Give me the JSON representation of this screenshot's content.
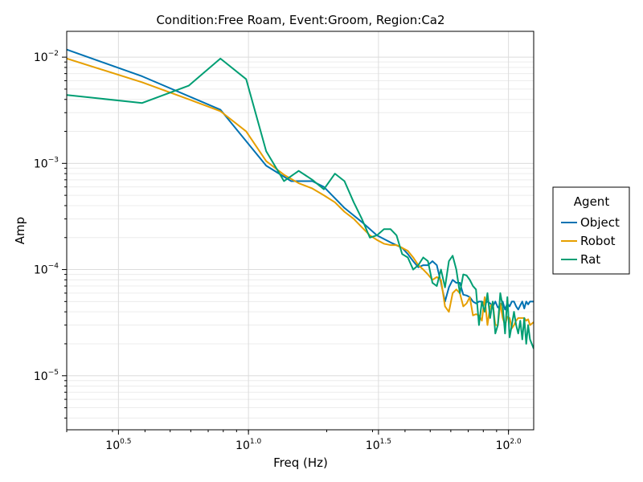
{
  "chart_data": {
    "type": "line",
    "title": "Condition:Free Roam, Event:Groom, Region:Ca2",
    "xlabel": "Freq (Hz)",
    "ylabel": "Amp",
    "x_scale": "log10",
    "y_scale": "log10",
    "xlim": [
      2.0,
      125.0
    ],
    "ylim": [
      3.1e-06,
      0.0175
    ],
    "grid": true,
    "x_ticks": [
      {
        "value": 3.1623,
        "base": "10",
        "exp": "0.5"
      },
      {
        "value": 10.0,
        "base": "10",
        "exp": "1.0"
      },
      {
        "value": 31.623,
        "base": "10",
        "exp": "1.5"
      },
      {
        "value": 100.0,
        "base": "10",
        "exp": "2.0"
      }
    ],
    "y_ticks": [
      {
        "value": 1e-05,
        "base": "10",
        "exp": "−5"
      },
      {
        "value": 0.0001,
        "base": "10",
        "exp": "−4"
      },
      {
        "value": 0.001,
        "base": "10",
        "exp": "−3"
      },
      {
        "value": 0.01,
        "base": "10",
        "exp": "−2"
      }
    ],
    "legend": {
      "title": "Agent",
      "position": "right"
    },
    "series": [
      {
        "name": "Object",
        "color": "#0072b2",
        "points": [
          [
            2.0,
            0.0118
          ],
          [
            3.9,
            0.0066
          ],
          [
            7.8,
            0.0032
          ],
          [
            11.7,
            0.00095
          ],
          [
            14.6,
            0.00068
          ],
          [
            17.6,
            0.00068
          ],
          [
            19.5,
            0.0006
          ],
          [
            23.4,
            0.00038
          ],
          [
            27.3,
            0.00028
          ],
          [
            31.2,
            0.00021
          ],
          [
            35.2,
            0.00018
          ],
          [
            39.0,
            0.00016
          ],
          [
            41.0,
            0.00014
          ],
          [
            43.0,
            0.00012
          ],
          [
            45.0,
            0.000105
          ],
          [
            47.0,
            0.00011
          ],
          [
            49.0,
            0.00011
          ],
          [
            51.0,
            0.00012
          ],
          [
            53.0,
            0.00011
          ],
          [
            55.0,
            7.5e-05
          ],
          [
            57.0,
            5e-05
          ],
          [
            59.0,
            6.8e-05
          ],
          [
            61.0,
            8e-05
          ],
          [
            63.0,
            7.5e-05
          ],
          [
            65.0,
            7.5e-05
          ],
          [
            67.0,
            5.8e-05
          ],
          [
            69.0,
            5.7e-05
          ],
          [
            71.0,
            5.5e-05
          ],
          [
            73.0,
            5e-05
          ],
          [
            75.0,
            4.8e-05
          ],
          [
            77.0,
            5e-05
          ],
          [
            79.0,
            5e-05
          ],
          [
            81.0,
            4.8e-05
          ],
          [
            83.0,
            5e-05
          ],
          [
            85.0,
            4.8e-05
          ],
          [
            87.0,
            4.5e-05
          ],
          [
            89.0,
            5e-05
          ],
          [
            91.0,
            4.4e-05
          ],
          [
            93.0,
            4.5e-05
          ],
          [
            95.0,
            5e-05
          ],
          [
            97.0,
            4.2e-05
          ],
          [
            99.0,
            4.8e-05
          ],
          [
            101.0,
            4.5e-05
          ],
          [
            103.0,
            5e-05
          ],
          [
            105.0,
            5e-05
          ],
          [
            107.0,
            4.5e-05
          ],
          [
            109.0,
            4.2e-05
          ],
          [
            111.0,
            4.6e-05
          ],
          [
            113.0,
            5e-05
          ],
          [
            115.0,
            4.3e-05
          ],
          [
            117.0,
            5e-05
          ],
          [
            119.0,
            4.7e-05
          ],
          [
            121.0,
            5e-05
          ],
          [
            125.0,
            5e-05
          ]
        ]
      },
      {
        "name": "Robot",
        "color": "#e69f00",
        "points": [
          [
            2.0,
            0.0097
          ],
          [
            3.9,
            0.0058
          ],
          [
            5.9,
            0.004
          ],
          [
            7.8,
            0.0031
          ],
          [
            9.8,
            0.002
          ],
          [
            11.7,
            0.00105
          ],
          [
            13.7,
            0.00078
          ],
          [
            15.6,
            0.00065
          ],
          [
            17.6,
            0.00058
          ],
          [
            19.5,
            0.0005
          ],
          [
            21.5,
            0.00043
          ],
          [
            23.4,
            0.00035
          ],
          [
            25.4,
            0.0003
          ],
          [
            27.3,
            0.00025
          ],
          [
            29.3,
            0.00021
          ],
          [
            31.2,
            0.00019
          ],
          [
            33.2,
            0.000175
          ],
          [
            35.2,
            0.00017
          ],
          [
            37.1,
            0.00017
          ],
          [
            39.0,
            0.00016
          ],
          [
            41.0,
            0.00015
          ],
          [
            43.0,
            0.00013
          ],
          [
            45.0,
            0.00011
          ],
          [
            47.0,
            0.0001
          ],
          [
            49.0,
            9e-05
          ],
          [
            51.0,
            8e-05
          ],
          [
            53.0,
            8.5e-05
          ],
          [
            55.0,
            8e-05
          ],
          [
            57.0,
            4.5e-05
          ],
          [
            59.0,
            4e-05
          ],
          [
            61.0,
            6e-05
          ],
          [
            63.0,
            6.5e-05
          ],
          [
            65.0,
            6e-05
          ],
          [
            67.0,
            4.5e-05
          ],
          [
            69.0,
            4.8e-05
          ],
          [
            71.0,
            5.5e-05
          ],
          [
            73.0,
            3.7e-05
          ],
          [
            75.0,
            3.8e-05
          ],
          [
            77.0,
            3.7e-05
          ],
          [
            79.0,
            3.3e-05
          ],
          [
            81.0,
            5.5e-05
          ],
          [
            83.0,
            3e-05
          ],
          [
            85.0,
            4.5e-05
          ],
          [
            87.0,
            4.8e-05
          ],
          [
            89.0,
            3e-05
          ],
          [
            91.0,
            3e-05
          ],
          [
            93.0,
            4.8e-05
          ],
          [
            95.0,
            3.5e-05
          ],
          [
            97.0,
            3e-05
          ],
          [
            99.0,
            3.6e-05
          ],
          [
            101.0,
            3.5e-05
          ],
          [
            103.0,
            2.8e-05
          ],
          [
            105.0,
            3e-05
          ],
          [
            107.0,
            3.3e-05
          ],
          [
            109.0,
            3.5e-05
          ],
          [
            111.0,
            3.5e-05
          ],
          [
            113.0,
            3.5e-05
          ],
          [
            115.0,
            3.5e-05
          ],
          [
            117.0,
            3.3e-05
          ],
          [
            119.0,
            3.4e-05
          ],
          [
            121.0,
            3e-05
          ],
          [
            125.0,
            3.2e-05
          ]
        ]
      },
      {
        "name": "Rat",
        "color": "#009e73",
        "points": [
          [
            2.0,
            0.0044
          ],
          [
            3.9,
            0.0037
          ],
          [
            5.9,
            0.0054
          ],
          [
            7.8,
            0.0097
          ],
          [
            9.8,
            0.0062
          ],
          [
            11.7,
            0.0013
          ],
          [
            13.7,
            0.00068
          ],
          [
            15.6,
            0.00085
          ],
          [
            17.6,
            0.0007
          ],
          [
            19.5,
            0.00057
          ],
          [
            21.5,
            0.0008
          ],
          [
            23.4,
            0.00068
          ],
          [
            25.4,
            0.00043
          ],
          [
            27.3,
            0.0003
          ],
          [
            29.3,
            0.0002
          ],
          [
            31.2,
            0.00021
          ],
          [
            33.2,
            0.00024
          ],
          [
            35.2,
            0.00024
          ],
          [
            37.1,
            0.00021
          ],
          [
            39.0,
            0.00014
          ],
          [
            41.0,
            0.00013
          ],
          [
            43.0,
            0.0001
          ],
          [
            45.0,
            0.00011
          ],
          [
            47.0,
            0.00013
          ],
          [
            49.0,
            0.00012
          ],
          [
            51.0,
            7.5e-05
          ],
          [
            53.0,
            7e-05
          ],
          [
            55.0,
            0.0001
          ],
          [
            57.0,
            6.8e-05
          ],
          [
            59.0,
            0.00012
          ],
          [
            61.0,
            0.000135
          ],
          [
            63.0,
            0.0001
          ],
          [
            65.0,
            6e-05
          ],
          [
            67.0,
            9e-05
          ],
          [
            69.0,
            8.8e-05
          ],
          [
            71.0,
            8e-05
          ],
          [
            73.0,
            7e-05
          ],
          [
            75.0,
            6.5e-05
          ],
          [
            77.0,
            3e-05
          ],
          [
            79.0,
            5e-05
          ],
          [
            81.0,
            4e-05
          ],
          [
            83.0,
            6e-05
          ],
          [
            85.0,
            3.5e-05
          ],
          [
            87.0,
            5e-05
          ],
          [
            89.0,
            2.5e-05
          ],
          [
            91.0,
            3e-05
          ],
          [
            93.0,
            6e-05
          ],
          [
            95.0,
            4.5e-05
          ],
          [
            97.0,
            2.5e-05
          ],
          [
            99.0,
            5.5e-05
          ],
          [
            101.0,
            2.3e-05
          ],
          [
            103.0,
            3e-05
          ],
          [
            105.0,
            4e-05
          ],
          [
            107.0,
            3e-05
          ],
          [
            109.0,
            2.5e-05
          ],
          [
            111.0,
            3.3e-05
          ],
          [
            113.0,
            2.2e-05
          ],
          [
            115.0,
            3.5e-05
          ],
          [
            117.0,
            2e-05
          ],
          [
            119.0,
            3e-05
          ],
          [
            121.0,
            2.2e-05
          ],
          [
            125.0,
            1.8e-05
          ]
        ]
      }
    ]
  }
}
